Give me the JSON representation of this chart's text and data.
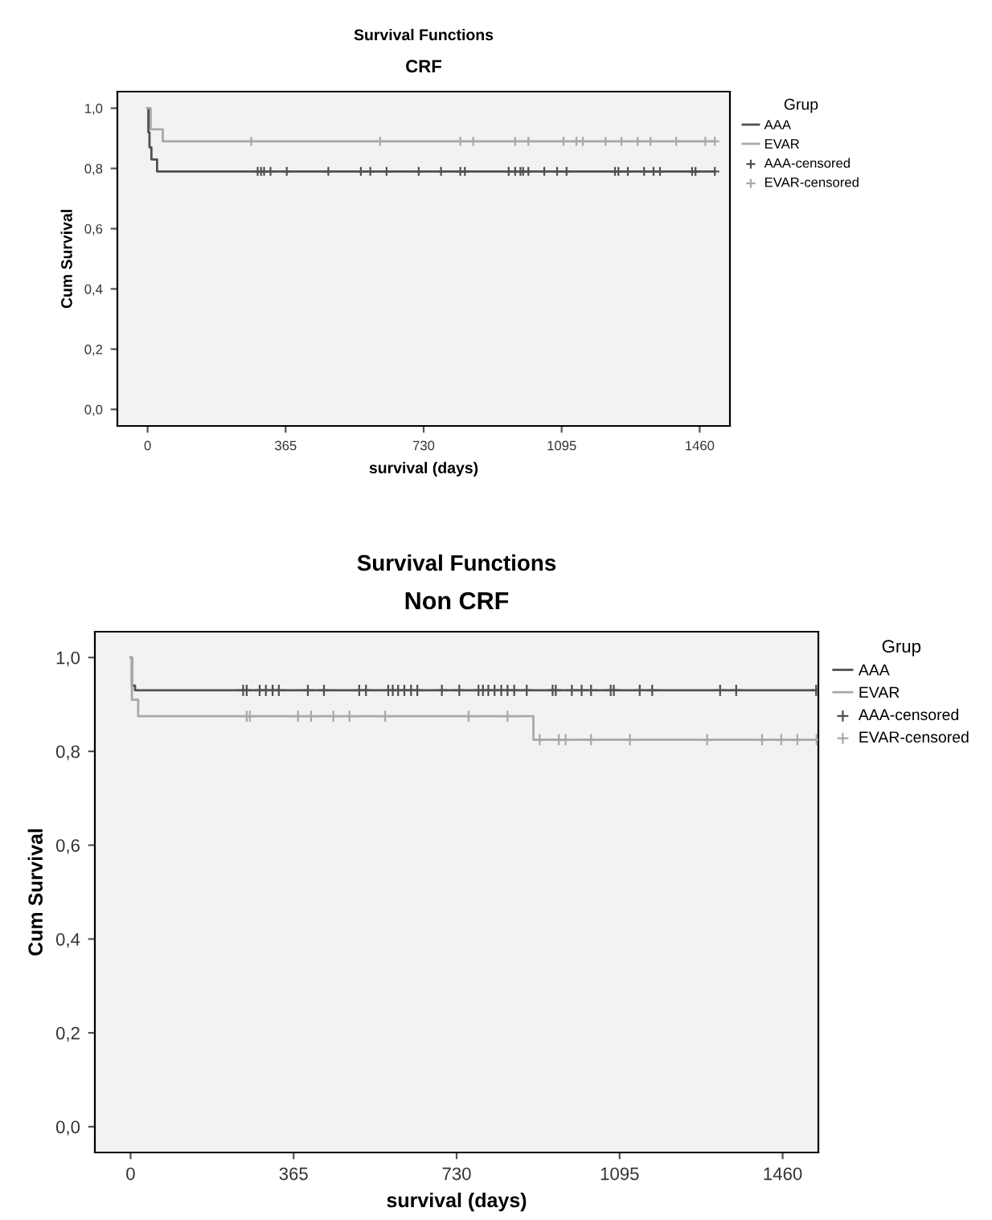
{
  "chart_data": [
    {
      "type": "step",
      "title": "Survival Functions",
      "subtitle": "CRF",
      "xlabel": "survival (days)",
      "ylabel": "Cum Survival",
      "legend_title": "Grup",
      "legend": "right",
      "xlim": [
        -80,
        1540
      ],
      "ylim": [
        -0.055,
        1.055
      ],
      "xticks": [
        0,
        365,
        730,
        1095,
        1460
      ],
      "yticks": [
        {
          "value": 0.0,
          "label": "0,0"
        },
        {
          "value": 0.2,
          "label": "0,2"
        },
        {
          "value": 0.4,
          "label": "0,4"
        },
        {
          "value": 0.6,
          "label": "0,6"
        },
        {
          "value": 0.8,
          "label": "0,8"
        },
        {
          "value": 1.0,
          "label": "1,0"
        }
      ],
      "series": [
        {
          "name": "AAA",
          "color": "#505050",
          "x": [
            0,
            2,
            5,
            10,
            25,
            1500
          ],
          "values": [
            1.0,
            0.92,
            0.87,
            0.83,
            0.79,
            0.79
          ]
        },
        {
          "name": "EVAR",
          "color": "#a8a8a8",
          "x": [
            0,
            8,
            40,
            1500
          ],
          "values": [
            1.0,
            0.93,
            0.89,
            0.89
          ]
        },
        {
          "name": "AAA-censored",
          "type": "scatter",
          "marker": "cross",
          "color": "#505050",
          "x": [
            291,
            300,
            308,
            325,
            368,
            478,
            564,
            589,
            632,
            717,
            776,
            827,
            839,
            955,
            972,
            986,
            993,
            1007,
            1049,
            1083,
            1108,
            1236,
            1245,
            1270,
            1313,
            1338,
            1355,
            1440,
            1449,
            1500
          ],
          "values": [
            0.79,
            0.79,
            0.79,
            0.79,
            0.79,
            0.79,
            0.79,
            0.79,
            0.79,
            0.79,
            0.79,
            0.79,
            0.79,
            0.79,
            0.79,
            0.79,
            0.79,
            0.79,
            0.79,
            0.79,
            0.79,
            0.79,
            0.79,
            0.79,
            0.79,
            0.79,
            0.79,
            0.79,
            0.79,
            0.79
          ]
        },
        {
          "name": "EVAR-censored",
          "type": "scatter",
          "marker": "cross",
          "color": "#a8a8a8",
          "x": [
            274,
            615,
            827,
            861,
            972,
            1007,
            1100,
            1134,
            1151,
            1211,
            1253,
            1296,
            1330,
            1398,
            1475,
            1500
          ],
          "values": [
            0.89,
            0.89,
            0.89,
            0.89,
            0.89,
            0.89,
            0.89,
            0.89,
            0.89,
            0.89,
            0.89,
            0.89,
            0.89,
            0.89,
            0.89,
            0.89
          ]
        }
      ]
    },
    {
      "type": "step",
      "title": "Survival Functions",
      "subtitle": "Non CRF",
      "xlabel": "survival (days)",
      "ylabel": "Cum Survival",
      "legend_title": "Grup",
      "legend": "right",
      "xlim": [
        -80,
        1540
      ],
      "ylim": [
        -0.055,
        1.055
      ],
      "xticks": [
        0,
        365,
        730,
        1095,
        1460
      ],
      "yticks": [
        {
          "value": 0.0,
          "label": "0,0"
        },
        {
          "value": 0.2,
          "label": "0,2"
        },
        {
          "value": 0.4,
          "label": "0,4"
        },
        {
          "value": 0.6,
          "label": "0,6"
        },
        {
          "value": 0.8,
          "label": "0,8"
        },
        {
          "value": 1.0,
          "label": "1,0"
        }
      ],
      "series": [
        {
          "name": "AAA",
          "color": "#505050",
          "x": [
            0,
            3,
            10,
            1539
          ],
          "values": [
            1.0,
            0.94,
            0.93,
            0.93
          ]
        },
        {
          "name": "EVAR",
          "color": "#a8a8a8",
          "x": [
            0,
            3,
            17,
            902,
            1536
          ],
          "values": [
            1.0,
            0.91,
            0.875,
            0.825,
            0.825
          ]
        },
        {
          "name": "AAA-censored",
          "type": "scatter",
          "marker": "cross",
          "color": "#505050",
          "x": [
            252,
            260,
            289,
            303,
            318,
            332,
            397,
            433,
            512,
            527,
            577,
            587,
            599,
            613,
            628,
            642,
            697,
            736,
            779,
            789,
            801,
            815,
            830,
            844,
            859,
            887,
            945,
            952,
            988,
            1010,
            1031,
            1075,
            1082,
            1140,
            1168,
            1320,
            1356,
            1535
          ],
          "values": [
            0.93,
            0.93,
            0.93,
            0.93,
            0.93,
            0.93,
            0.93,
            0.93,
            0.93,
            0.93,
            0.93,
            0.93,
            0.93,
            0.93,
            0.93,
            0.93,
            0.93,
            0.93,
            0.93,
            0.93,
            0.93,
            0.93,
            0.93,
            0.93,
            0.93,
            0.93,
            0.93,
            0.93,
            0.93,
            0.93,
            0.93,
            0.93,
            0.93,
            0.93,
            0.93,
            0.93,
            0.93,
            0.93
          ]
        },
        {
          "name": "EVAR-censored",
          "type": "scatter",
          "marker": "cross",
          "color": "#a8a8a8",
          "x": [
            260,
            267,
            375,
            404,
            454,
            490,
            570,
            757,
            844,
            916,
            959,
            974,
            1031,
            1118,
            1291,
            1414,
            1457,
            1493,
            1536
          ],
          "values": [
            0.875,
            0.875,
            0.875,
            0.875,
            0.875,
            0.875,
            0.875,
            0.875,
            0.875,
            0.825,
            0.825,
            0.825,
            0.825,
            0.825,
            0.825,
            0.825,
            0.825,
            0.825,
            0.825
          ]
        }
      ]
    }
  ]
}
